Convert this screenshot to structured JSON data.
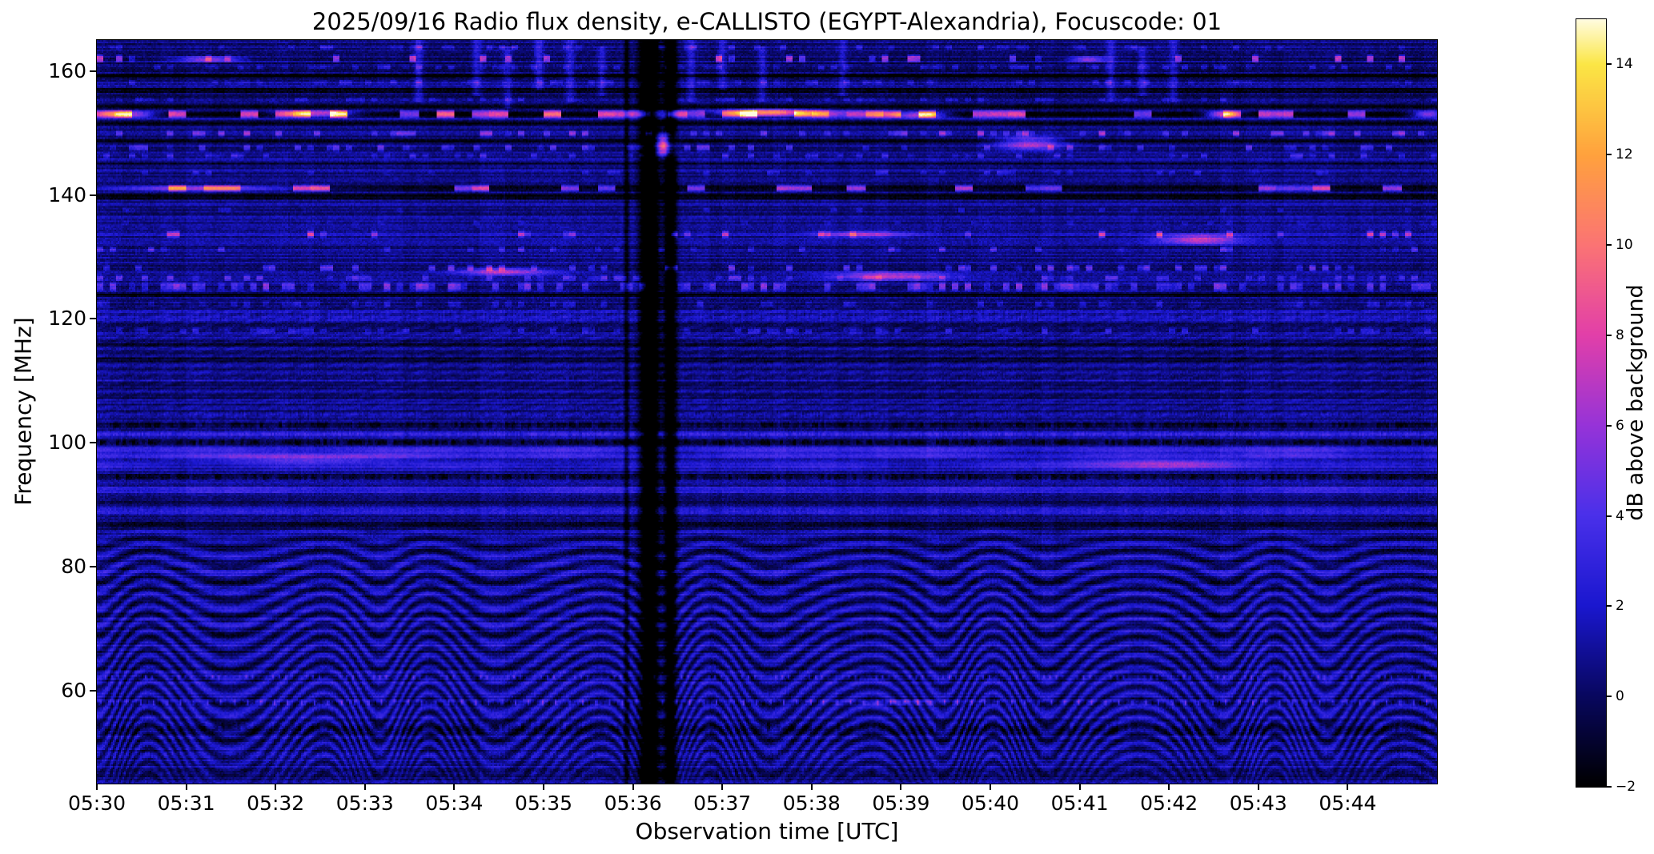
{
  "chart_data": {
    "type": "heatmap",
    "title": "2025/09/16  Radio flux density, e-CALLISTO (EGYPT-Alexandria), Focuscode: 01",
    "date": "2025/09/16",
    "station": "EGYPT-Alexandria",
    "focuscode": "01",
    "xlabel": "Observation time [UTC]",
    "ylabel": "Frequency [MHz]",
    "colorbar_label": "dB above background",
    "x_start": "05:30",
    "x_end": "05:45",
    "x_span_minutes": 15,
    "x_tick_labels": [
      "05:30",
      "05:31",
      "05:32",
      "05:33",
      "05:34",
      "05:35",
      "05:36",
      "05:37",
      "05:38",
      "05:39",
      "05:40",
      "05:41",
      "05:42",
      "05:43",
      "05:44"
    ],
    "y_range": [
      45,
      165
    ],
    "y_tick_values": [
      160,
      140,
      120,
      100,
      80,
      60
    ],
    "y_tick_labels": [
      "160",
      "140",
      "120",
      "100",
      "80",
      "60"
    ],
    "value_range_db": [
      -2,
      15
    ],
    "colorbar_tick_values": [
      14,
      12,
      10,
      8,
      6,
      4,
      2,
      0,
      -2
    ],
    "colorbar_tick_labels": [
      "14",
      "12",
      "10",
      "8",
      "6",
      "4",
      "2",
      "0",
      "−2"
    ],
    "grid": false,
    "legend": "colorbar-right",
    "colormap_stops": [
      [
        0.0,
        "#000000"
      ],
      [
        0.118,
        "#08075f"
      ],
      [
        0.235,
        "#1a17cf"
      ],
      [
        0.353,
        "#4a30ea"
      ],
      [
        0.47,
        "#9633d8"
      ],
      [
        0.588,
        "#e23fa9"
      ],
      [
        0.706,
        "#fb7474"
      ],
      [
        0.824,
        "#ffa23d"
      ],
      [
        0.941,
        "#fbe645"
      ],
      [
        1.0,
        "#fffce0"
      ]
    ],
    "notable_features": [
      "Quasi-periodic wavy interference fringes below ~88 MHz across the full interval",
      "Full-height black data-dropout column near 05:36:10–05:36:30",
      "Bright intermittent RFI line at ~153 MHz, strongest 05:37–05:38 (reaching ~13 dB)",
      "Bright RFI line at ~141 MHz from 05:30 to ~05:33 with black band just below (~140 MHz)",
      "Dense speckled RFI band around 125 MHz for the whole interval",
      "Diffuse enhanced emission band near 95–99 MHz",
      "Dotted periodic RFI rows near 58 and 62 MHz",
      "Scattered RFI speckle rows between 126 and 164 MHz",
      "Bright clusters near 146–150 MHz around 05:36:20 and 05:40:20"
    ],
    "spectrogram": {
      "background": {
        "base": 0.9,
        "pixel_noise": 1.2,
        "row_noise": 1.0,
        "col_noise": 0.5
      },
      "wave": {
        "f_min": 45,
        "f_max": 88.5,
        "spacing": 2.35,
        "period_min": 1.55,
        "sweep": 7.5,
        "amp": 1.6,
        "wobble": 0.9
      },
      "bands": [
        {
          "f": 163.8,
          "w": 1.0,
          "db": 2.2,
          "style": "speckle",
          "density": 0.25
        },
        {
          "f": 162.0,
          "w": 1.4,
          "db": 6.5,
          "style": "speckle",
          "density": 0.13
        },
        {
          "f": 160.6,
          "w": 1.0,
          "db": 2.0,
          "style": "speckle",
          "density": 0.3
        },
        {
          "f": 159.3,
          "w": 0.9,
          "db": -2.6,
          "style": "dark"
        },
        {
          "f": 158.2,
          "w": 1.0,
          "db": 1.8,
          "style": "speckle",
          "density": 0.25
        },
        {
          "f": 156.8,
          "w": 1.1,
          "db": -2.8,
          "style": "dark"
        },
        {
          "f": 155.4,
          "w": 1.0,
          "db": 1.5,
          "style": "speckle",
          "density": 0.3
        },
        {
          "f": 154.2,
          "w": 0.9,
          "db": -2.6,
          "style": "dark"
        },
        {
          "f": 153.0,
          "w": 1.5,
          "db": 8.5,
          "style": "segments",
          "density": 0.5
        },
        {
          "f": 151.6,
          "w": 1.0,
          "db": -2.8,
          "style": "dark"
        },
        {
          "f": 149.9,
          "w": 1.2,
          "db": 4.5,
          "style": "speckle",
          "density": 0.22
        },
        {
          "f": 148.7,
          "w": 0.8,
          "db": -2.0,
          "style": "dark"
        },
        {
          "f": 147.6,
          "w": 1.2,
          "db": 3.5,
          "style": "speckle",
          "density": 0.25
        },
        {
          "f": 146.3,
          "w": 1.0,
          "db": 2.5,
          "style": "speckle",
          "density": 0.22
        },
        {
          "f": 144.9,
          "w": 0.8,
          "db": -1.6,
          "style": "dark"
        },
        {
          "f": 143.6,
          "w": 0.9,
          "db": 2.0,
          "style": "speckle",
          "density": 0.15
        },
        {
          "f": 141.1,
          "w": 1.3,
          "db": 7.0,
          "style": "segments",
          "density": 0.45
        },
        {
          "f": 139.8,
          "w": 1.5,
          "db": -3.2,
          "style": "dark"
        },
        {
          "f": 137.6,
          "w": 0.8,
          "db": 1.5,
          "style": "speckle",
          "density": 0.15
        },
        {
          "f": 135.5,
          "w": 0.8,
          "db": 1.2,
          "style": "speckle",
          "density": 0.12
        },
        {
          "f": 133.6,
          "w": 1.4,
          "db": 5.0,
          "style": "speckle",
          "density": 0.14
        },
        {
          "f": 131.2,
          "w": 1.1,
          "db": 3.0,
          "style": "speckle",
          "density": 0.14
        },
        {
          "f": 128.2,
          "w": 1.3,
          "db": 4.0,
          "style": "speckle",
          "density": 0.18
        },
        {
          "f": 126.6,
          "w": 1.1,
          "db": 3.0,
          "style": "speckle",
          "density": 0.25
        },
        {
          "f": 125.2,
          "w": 1.7,
          "db": 4.5,
          "style": "speckle",
          "density": 0.45
        },
        {
          "f": 123.9,
          "w": 1.1,
          "db": -3.0,
          "style": "dark"
        },
        {
          "f": 122.4,
          "w": 1.3,
          "db": 1.8,
          "style": "speckle",
          "density": 0.35
        },
        {
          "f": 120.4,
          "w": 2.6,
          "db": 1.1,
          "style": "texture"
        },
        {
          "f": 118.1,
          "w": 1.1,
          "db": 2.2,
          "style": "speckle",
          "density": 0.3
        },
        {
          "f": 115.9,
          "w": 0.9,
          "db": -1.6,
          "style": "dark"
        },
        {
          "f": 113.4,
          "w": 0.9,
          "db": -1.3,
          "style": "dark"
        },
        {
          "f": 110.2,
          "w": 1.0,
          "db": 0.9,
          "style": "texture"
        },
        {
          "f": 107.4,
          "w": 0.9,
          "db": -1.4,
          "style": "dark"
        },
        {
          "f": 104.6,
          "w": 1.1,
          "db": 1.4,
          "style": "texture"
        },
        {
          "f": 102.9,
          "w": 1.3,
          "db": -2.4,
          "style": "darktex"
        },
        {
          "f": 101.4,
          "w": 1.0,
          "db": 1.8,
          "style": "texture"
        },
        {
          "f": 100.1,
          "w": 1.3,
          "db": -2.6,
          "style": "darktex"
        },
        {
          "f": 98.4,
          "w": 2.4,
          "db": 3.0,
          "style": "fuzzy"
        },
        {
          "f": 96.3,
          "w": 2.0,
          "db": 2.2,
          "style": "fuzzy"
        },
        {
          "f": 94.4,
          "w": 1.3,
          "db": -2.4,
          "style": "darktex"
        },
        {
          "f": 92.4,
          "w": 1.6,
          "db": 1.8,
          "style": "fuzzy"
        },
        {
          "f": 90.4,
          "w": 1.1,
          "db": -1.6,
          "style": "dark"
        },
        {
          "f": 88.9,
          "w": 1.3,
          "db": 1.1,
          "style": "texture"
        },
        {
          "f": 86.9,
          "w": 1.0,
          "db": -1.9,
          "style": "dark"
        },
        {
          "f": 62.2,
          "w": 0.9,
          "db": 2.4,
          "style": "dots",
          "period_s": 4.5
        },
        {
          "f": 58.1,
          "w": 1.2,
          "db": 3.4,
          "style": "dots",
          "period_s": 9
        },
        {
          "f": 54.0,
          "w": 2.2,
          "db": -1.6,
          "style": "darktex"
        },
        {
          "f": 49.6,
          "w": 1.6,
          "db": 1.0,
          "style": "texture"
        },
        {
          "f": 46.6,
          "w": 1.6,
          "db": -1.1,
          "style": "darktex"
        }
      ],
      "blobs": [
        {
          "t": 0.35,
          "f": 153.0,
          "wt": 0.45,
          "wf": 1.4,
          "db": 9
        },
        {
          "t": 2.45,
          "f": 153.1,
          "wt": 0.55,
          "wf": 1.4,
          "db": 9.5
        },
        {
          "t": 7.5,
          "f": 153.2,
          "wt": 0.75,
          "wf": 1.5,
          "db": 13
        },
        {
          "t": 9.2,
          "f": 152.9,
          "wt": 0.45,
          "wf": 1.4,
          "db": 9
        },
        {
          "t": 12.6,
          "f": 153.0,
          "wt": 0.25,
          "wf": 1.4,
          "db": 10
        },
        {
          "t": 14.9,
          "f": 153.0,
          "wt": 0.25,
          "wf": 1.4,
          "db": 8
        },
        {
          "t": 1.1,
          "f": 141.1,
          "wt": 1.6,
          "wf": 1.2,
          "db": 7.5
        },
        {
          "t": 6.35,
          "f": 148.0,
          "wt": 0.14,
          "wf": 4.5,
          "db": 11
        },
        {
          "t": 10.45,
          "f": 148.3,
          "wt": 0.5,
          "wf": 3.0,
          "db": 6.5
        },
        {
          "t": 4.55,
          "f": 127.6,
          "wt": 0.7,
          "wf": 1.6,
          "db": 6
        },
        {
          "t": 8.9,
          "f": 126.9,
          "wt": 0.9,
          "wf": 1.8,
          "db": 6
        },
        {
          "t": 12.35,
          "f": 132.8,
          "wt": 0.6,
          "wf": 2.2,
          "db": 6.5
        },
        {
          "t": 8.6,
          "f": 133.6,
          "wt": 0.7,
          "wf": 1.4,
          "db": 5
        },
        {
          "t": 2.3,
          "f": 97.6,
          "wt": 1.4,
          "wf": 2.2,
          "db": 3.5
        },
        {
          "t": 11.9,
          "f": 96.6,
          "wt": 1.6,
          "wf": 2.2,
          "db": 3.5
        },
        {
          "t": 11.1,
          "f": 161.9,
          "wt": 0.3,
          "wf": 1.2,
          "db": 6
        },
        {
          "t": 1.25,
          "f": 161.9,
          "wt": 0.5,
          "wf": 1.2,
          "db": 6
        },
        {
          "t": 9.0,
          "f": 58.1,
          "wt": 0.8,
          "wf": 1.2,
          "db": 2.5
        }
      ],
      "streaks": [
        {
          "t": 3.6,
          "f1": 155,
          "f2": 165,
          "w_s": 3,
          "db": 2.5
        },
        {
          "t": 4.25,
          "f1": 156,
          "f2": 165,
          "w_s": 3,
          "db": 2.5
        },
        {
          "t": 4.6,
          "f1": 154,
          "f2": 164,
          "w_s": 3,
          "db": 2.2
        },
        {
          "t": 4.95,
          "f1": 157,
          "f2": 165,
          "w_s": 3,
          "db": 2.6
        },
        {
          "t": 5.3,
          "f1": 155,
          "f2": 165,
          "w_s": 3,
          "db": 2.4
        },
        {
          "t": 5.65,
          "f1": 156,
          "f2": 164,
          "w_s": 3,
          "db": 2.2
        },
        {
          "t": 6.65,
          "f1": 155,
          "f2": 165,
          "w_s": 3,
          "db": 2.4
        },
        {
          "t": 7.0,
          "f1": 157,
          "f2": 165,
          "w_s": 3,
          "db": 2.2
        },
        {
          "t": 7.45,
          "f1": 155,
          "f2": 164,
          "w_s": 3,
          "db": 2.3
        },
        {
          "t": 8.35,
          "f1": 156,
          "f2": 165,
          "w_s": 3,
          "db": 2.2
        },
        {
          "t": 11.35,
          "f1": 155,
          "f2": 165,
          "w_s": 3,
          "db": 2.4
        },
        {
          "t": 11.7,
          "f1": 156,
          "f2": 164,
          "w_s": 3,
          "db": 2.2
        },
        {
          "t": 12.05,
          "f1": 155,
          "f2": 165,
          "w_s": 3,
          "db": 2.3
        }
      ],
      "v_events": [
        {
          "t": 6.18,
          "w_s": 11,
          "db": -7
        },
        {
          "t": 6.42,
          "w_s": 7,
          "db": -6
        },
        {
          "t": 5.93,
          "w_s": 3,
          "db": -3
        }
      ]
    }
  }
}
